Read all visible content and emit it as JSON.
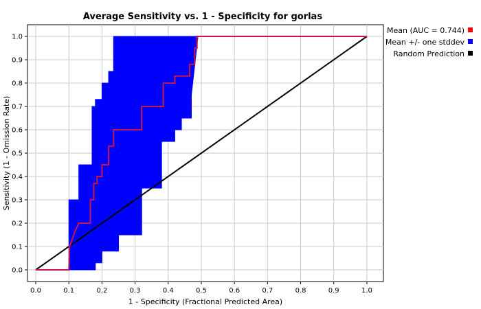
{
  "chart_data": {
    "type": "line",
    "title": "Average Sensitivity vs. 1 - Specificity for gorlas",
    "xlabel": "1 - Specificity (Fractional Predicted Area)",
    "ylabel": "Sensitivity (1 - Omission Rate)",
    "xlim": [
      -0.025,
      1.05
    ],
    "ylim": [
      -0.05,
      1.05
    ],
    "xticks": [
      "0.0",
      "0.1",
      "0.2",
      "0.3",
      "0.4",
      "0.5",
      "0.6",
      "0.7",
      "0.8",
      "0.9",
      "1.0"
    ],
    "yticks": [
      "0.0",
      "0.1",
      "0.2",
      "0.3",
      "0.4",
      "0.5",
      "0.6",
      "0.7",
      "0.8",
      "0.9",
      "1.0"
    ],
    "grid": true,
    "legend_position": "right",
    "legend": [
      {
        "label": "Mean (AUC = 0.744)",
        "color": "#ff0000"
      },
      {
        "label": "Mean +/- one stddev",
        "color": "#0000ff"
      },
      {
        "label": "Random Prediction",
        "color": "#000000"
      }
    ],
    "series": [
      {
        "name": "Mean (AUC = 0.744)",
        "color": "#c8174a",
        "x": [
          0.0,
          0.1,
          0.102,
          0.102,
          0.12,
          0.12,
          0.13,
          0.13,
          0.165,
          0.165,
          0.175,
          0.175,
          0.185,
          0.185,
          0.2,
          0.2,
          0.22,
          0.22,
          0.235,
          0.235,
          0.25,
          0.25,
          0.32,
          0.32,
          0.385,
          0.385,
          0.42,
          0.42,
          0.44,
          0.44,
          0.465,
          0.465,
          0.48,
          0.48,
          0.487,
          0.487,
          1.0
        ],
        "y": [
          0.0,
          0.0,
          0.1,
          0.1,
          0.17,
          0.17,
          0.2,
          0.2,
          0.2,
          0.3,
          0.3,
          0.37,
          0.37,
          0.4,
          0.4,
          0.45,
          0.45,
          0.53,
          0.53,
          0.6,
          0.6,
          0.6,
          0.6,
          0.7,
          0.7,
          0.8,
          0.8,
          0.83,
          0.83,
          0.83,
          0.83,
          0.88,
          0.88,
          0.95,
          0.95,
          1.0,
          1.0
        ]
      },
      {
        "name": "Mean +/- one stddev",
        "color": "#0000ff",
        "upper_x": [
          0.1,
          0.1,
          0.13,
          0.13,
          0.17,
          0.17,
          0.18,
          0.18,
          0.2,
          0.2,
          0.22,
          0.22,
          0.235,
          0.235,
          0.49,
          0.49
        ],
        "upper_y": [
          0.1,
          0.3,
          0.3,
          0.45,
          0.45,
          0.7,
          0.7,
          0.73,
          0.73,
          0.8,
          0.8,
          0.85,
          0.85,
          1.0,
          1.0,
          1.0
        ],
        "lower_x": [
          0.1,
          0.18,
          0.18,
          0.2,
          0.2,
          0.25,
          0.25,
          0.32,
          0.32,
          0.38,
          0.38,
          0.42,
          0.42,
          0.44,
          0.44,
          0.47,
          0.47,
          0.49
        ],
        "lower_y": [
          0.0,
          0.0,
          0.03,
          0.03,
          0.08,
          0.08,
          0.15,
          0.15,
          0.35,
          0.35,
          0.55,
          0.55,
          0.6,
          0.6,
          0.65,
          0.65,
          0.75,
          1.0
        ]
      },
      {
        "name": "Random Prediction",
        "color": "#000000",
        "x": [
          0.0,
          1.0
        ],
        "y": [
          0.0,
          1.0
        ]
      }
    ]
  }
}
